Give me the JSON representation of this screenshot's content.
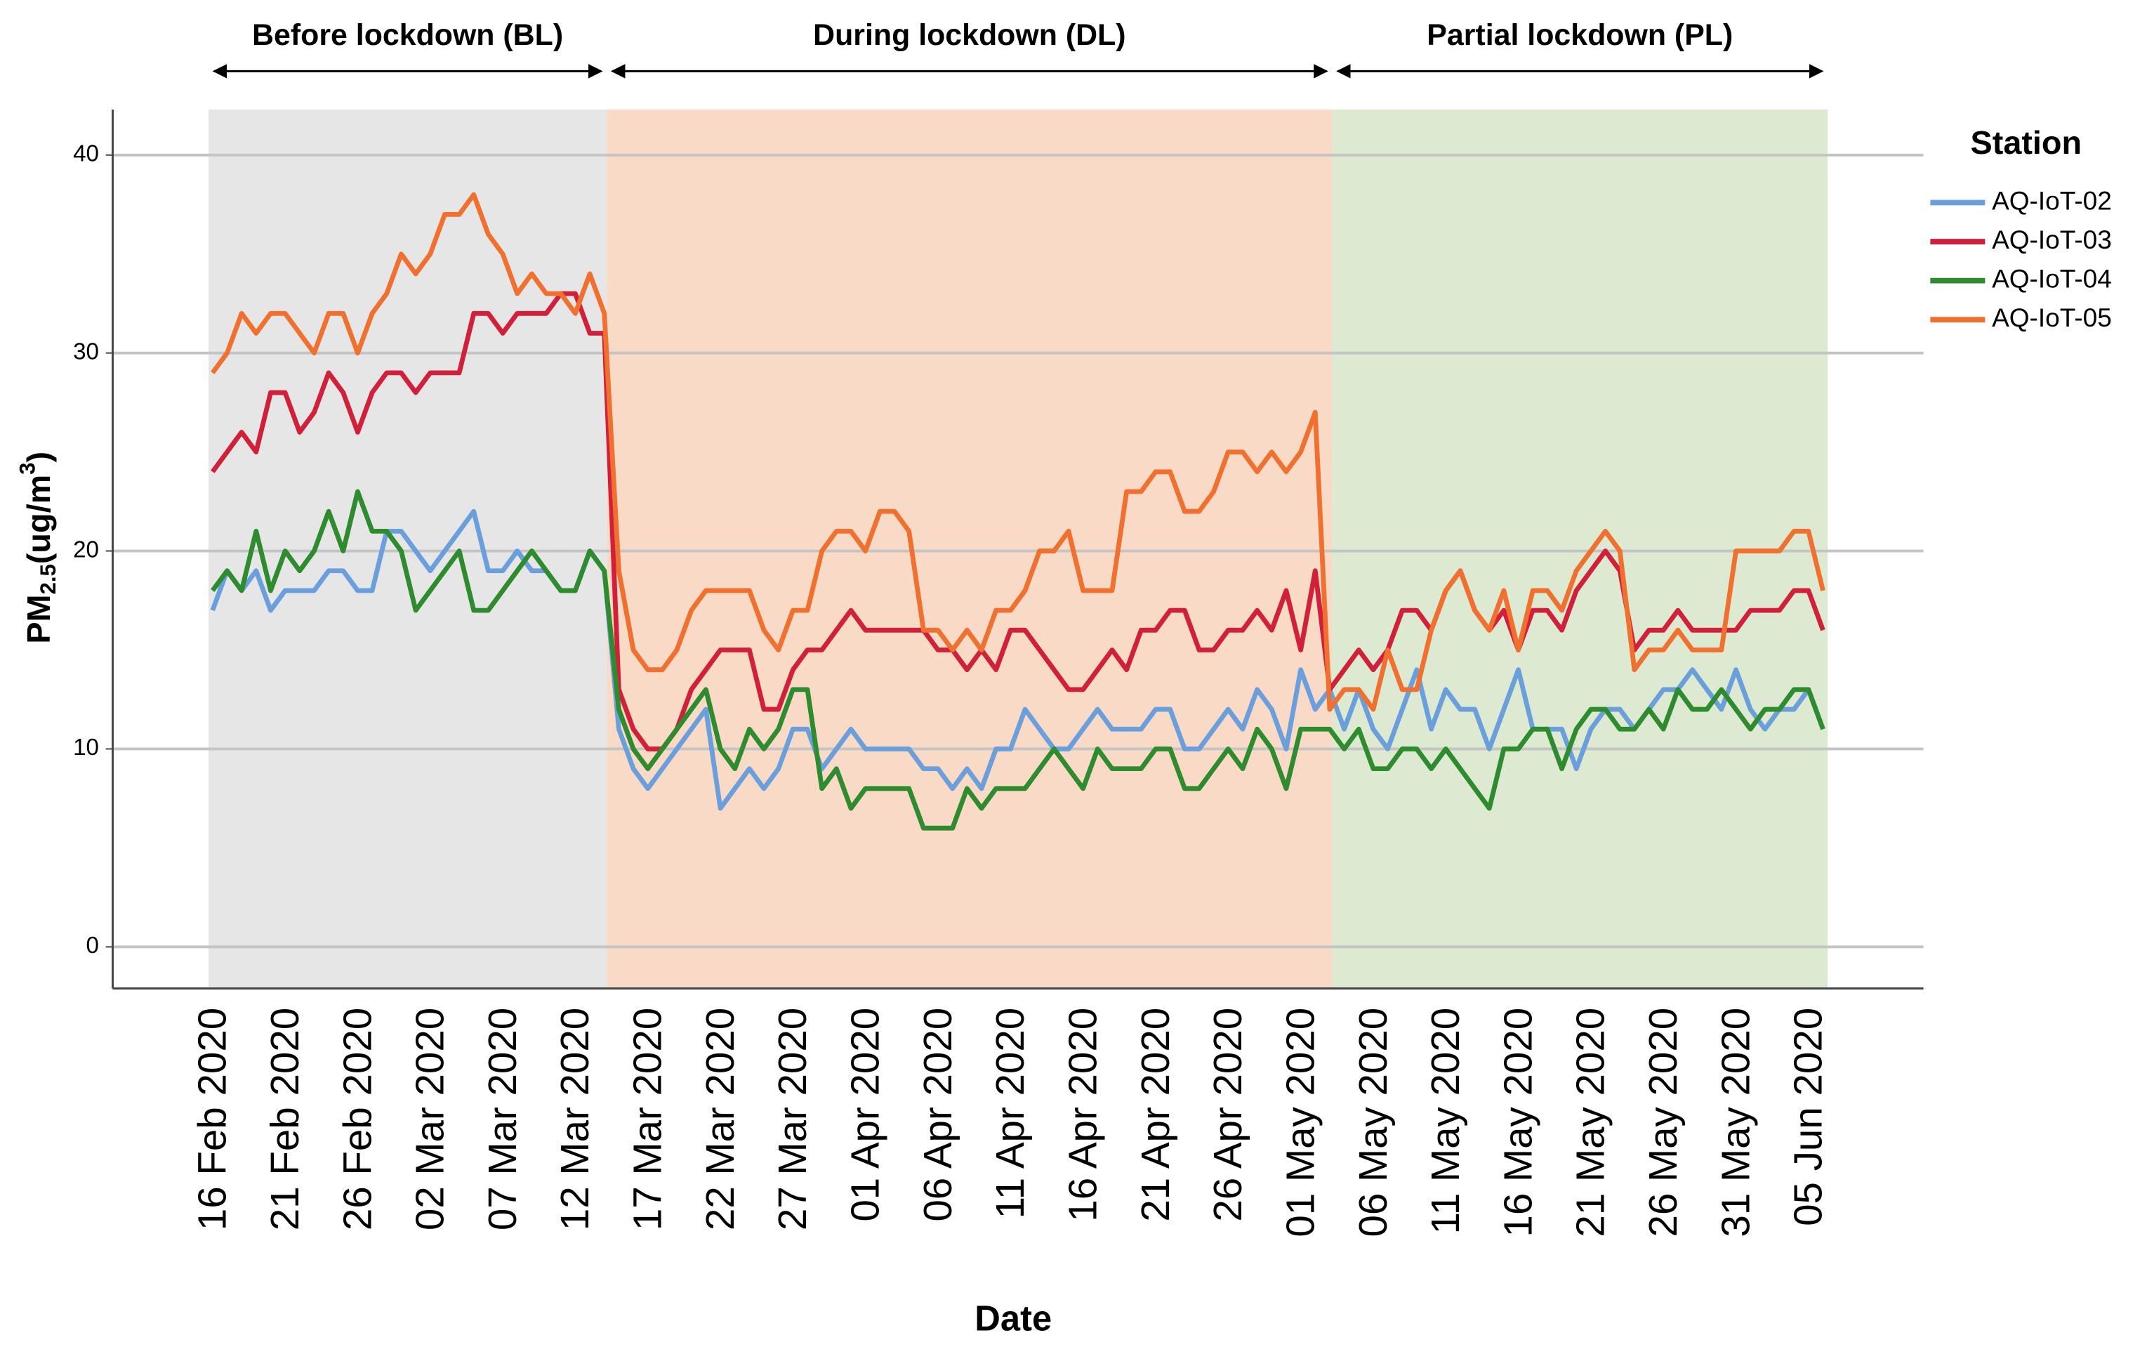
{
  "chart_data": {
    "type": "line",
    "x_label": "Date",
    "y_label": {
      "main": "PM",
      "sub": "2.5",
      "mid": "(ug/m",
      "sup": "3",
      "end": ")"
    },
    "legend_title": "Station",
    "regions": [
      {
        "label": "Before lockdown (BL)",
        "color": "#e6e6e6"
      },
      {
        "label": "During lockdown (DL)",
        "color": "#f9dac7"
      },
      {
        "label": "Partial lockdown (PL)",
        "color": "#dde9d1"
      }
    ],
    "categories": [
      "16 Feb 2020",
      null,
      null,
      null,
      null,
      "21 Feb 2020",
      null,
      null,
      null,
      null,
      "26 Feb 2020",
      null,
      null,
      null,
      null,
      "02 Mar 2020",
      null,
      null,
      null,
      null,
      "07 Mar 2020",
      null,
      null,
      null,
      null,
      "12 Mar 2020",
      null,
      null,
      null,
      null,
      "17 Mar 2020",
      null,
      null,
      null,
      null,
      "22 Mar 2020",
      null,
      null,
      null,
      null,
      "27 Mar 2020",
      null,
      null,
      null,
      null,
      "01 Apr 2020",
      null,
      null,
      null,
      null,
      "06 Apr 2020",
      null,
      null,
      null,
      null,
      "11 Apr 2020",
      null,
      null,
      null,
      null,
      "16 Apr 2020",
      null,
      null,
      null,
      null,
      "21 Apr 2020",
      null,
      null,
      null,
      null,
      "26 Apr 2020",
      null,
      null,
      null,
      null,
      "01 May 2020",
      null,
      null,
      null,
      null,
      "06 May 2020",
      null,
      null,
      null,
      null,
      "11 May 2020",
      null,
      null,
      null,
      null,
      "16 May 2020",
      null,
      null,
      null,
      null,
      "21 May 2020",
      null,
      null,
      null,
      null,
      "26 May 2020",
      null,
      null,
      null,
      null,
      "31 May 2020",
      null,
      null,
      null,
      null,
      "05 Jun 2020",
      null
    ],
    "series": [
      {
        "name": "AQ-IoT-02",
        "color": "#6a9fdc",
        "values": [
          17,
          19,
          18,
          19,
          17,
          18,
          18,
          18,
          19,
          19,
          18,
          18,
          21,
          21,
          20,
          19,
          20,
          21,
          22,
          19,
          19,
          20,
          19,
          19,
          18,
          18,
          20,
          19,
          11,
          9,
          8,
          9,
          10,
          11,
          12,
          7,
          8,
          9,
          8,
          9,
          11,
          11,
          9,
          10,
          11,
          10,
          10,
          10,
          10,
          9,
          9,
          8,
          9,
          8,
          10,
          10,
          12,
          11,
          10,
          10,
          11,
          12,
          11,
          11,
          11,
          12,
          12,
          10,
          10,
          11,
          12,
          11,
          13,
          12,
          10,
          14,
          12,
          13,
          11,
          13,
          11,
          10,
          12,
          14,
          11,
          13,
          12,
          12,
          10,
          12,
          14,
          11,
          11,
          11,
          9,
          11,
          12,
          12,
          11,
          12,
          13,
          13,
          14,
          13,
          12,
          14,
          12,
          11,
          12,
          12,
          13,
          11
        ]
      },
      {
        "name": "AQ-IoT-03",
        "color": "#d0203a",
        "values": [
          24,
          25,
          26,
          25,
          28,
          28,
          26,
          27,
          29,
          28,
          26,
          28,
          29,
          29,
          28,
          29,
          29,
          29,
          32,
          32,
          31,
          32,
          32,
          32,
          33,
          33,
          31,
          31,
          13,
          11,
          10,
          10,
          11,
          13,
          14,
          15,
          15,
          15,
          12,
          12,
          14,
          15,
          15,
          16,
          17,
          16,
          16,
          16,
          16,
          16,
          15,
          15,
          14,
          15,
          14,
          16,
          16,
          15,
          14,
          13,
          13,
          14,
          15,
          14,
          16,
          16,
          17,
          17,
          15,
          15,
          16,
          16,
          17,
          16,
          18,
          15,
          19,
          13,
          14,
          15,
          14,
          15,
          17,
          17,
          16,
          18,
          19,
          17,
          16,
          17,
          15,
          17,
          17,
          16,
          18,
          19,
          20,
          19,
          15,
          16,
          16,
          17,
          16,
          16,
          16,
          16,
          17,
          17,
          17,
          18,
          18,
          16
        ]
      },
      {
        "name": "AQ-IoT-04",
        "color": "#2e8b2e",
        "values": [
          18,
          19,
          18,
          21,
          18,
          20,
          19,
          20,
          22,
          20,
          23,
          21,
          21,
          20,
          17,
          18,
          19,
          20,
          17,
          17,
          18,
          19,
          20,
          19,
          18,
          18,
          20,
          19,
          12,
          10,
          9,
          10,
          11,
          12,
          13,
          10,
          9,
          11,
          10,
          11,
          13,
          13,
          8,
          9,
          7,
          8,
          8,
          8,
          8,
          6,
          6,
          6,
          8,
          7,
          8,
          8,
          8,
          9,
          10,
          9,
          8,
          10,
          9,
          9,
          9,
          10,
          10,
          8,
          8,
          9,
          10,
          9,
          11,
          10,
          8,
          11,
          11,
          11,
          10,
          11,
          9,
          9,
          10,
          10,
          9,
          10,
          9,
          8,
          7,
          10,
          10,
          11,
          11,
          9,
          11,
          12,
          12,
          11,
          11,
          12,
          11,
          13,
          12,
          12,
          13,
          12,
          11,
          12,
          12,
          13,
          13,
          11
        ]
      },
      {
        "name": "AQ-IoT-05",
        "color": "#f07030",
        "values": [
          29,
          30,
          32,
          31,
          32,
          32,
          31,
          30,
          32,
          32,
          30,
          32,
          33,
          35,
          34,
          35,
          37,
          37,
          38,
          36,
          35,
          33,
          34,
          33,
          33,
          32,
          34,
          32,
          19,
          15,
          14,
          14,
          15,
          17,
          18,
          18,
          18,
          18,
          16,
          15,
          17,
          17,
          20,
          21,
          21,
          20,
          22,
          22,
          21,
          16,
          16,
          15,
          16,
          15,
          17,
          17,
          18,
          20,
          20,
          21,
          18,
          18,
          18,
          23,
          23,
          24,
          24,
          22,
          22,
          23,
          25,
          25,
          24,
          25,
          24,
          25,
          27,
          12,
          13,
          13,
          12,
          15,
          13,
          13,
          16,
          18,
          19,
          17,
          16,
          18,
          15,
          18,
          18,
          17,
          19,
          20,
          21,
          20,
          14,
          15,
          15,
          16,
          15,
          15,
          15,
          20,
          20,
          20,
          20,
          21,
          21,
          18
        ]
      }
    ],
    "ylim": [
      -2.1,
      42.3
    ],
    "yticks": [
      0,
      10,
      20,
      30,
      40
    ],
    "grid": true
  }
}
